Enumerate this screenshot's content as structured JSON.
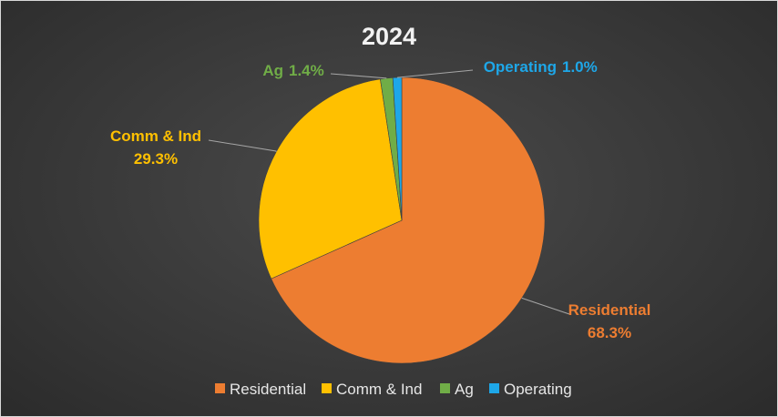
{
  "chart_data": {
    "type": "pie",
    "title": "2024",
    "categories": [
      "Residential",
      "Comm & Ind",
      "Ag",
      "Operating"
    ],
    "values": [
      68.3,
      29.3,
      1.4,
      1.0
    ],
    "value_labels": [
      "68.3%",
      "29.3%",
      "1.4%",
      "1.0%"
    ],
    "colors": [
      "#ed7d31",
      "#ffc000",
      "#70ad47",
      "#1ea7e8"
    ],
    "legend": {
      "position": "bottom",
      "entries": [
        "Residential",
        "Comm & Ind",
        "Ag",
        "Operating"
      ]
    }
  }
}
